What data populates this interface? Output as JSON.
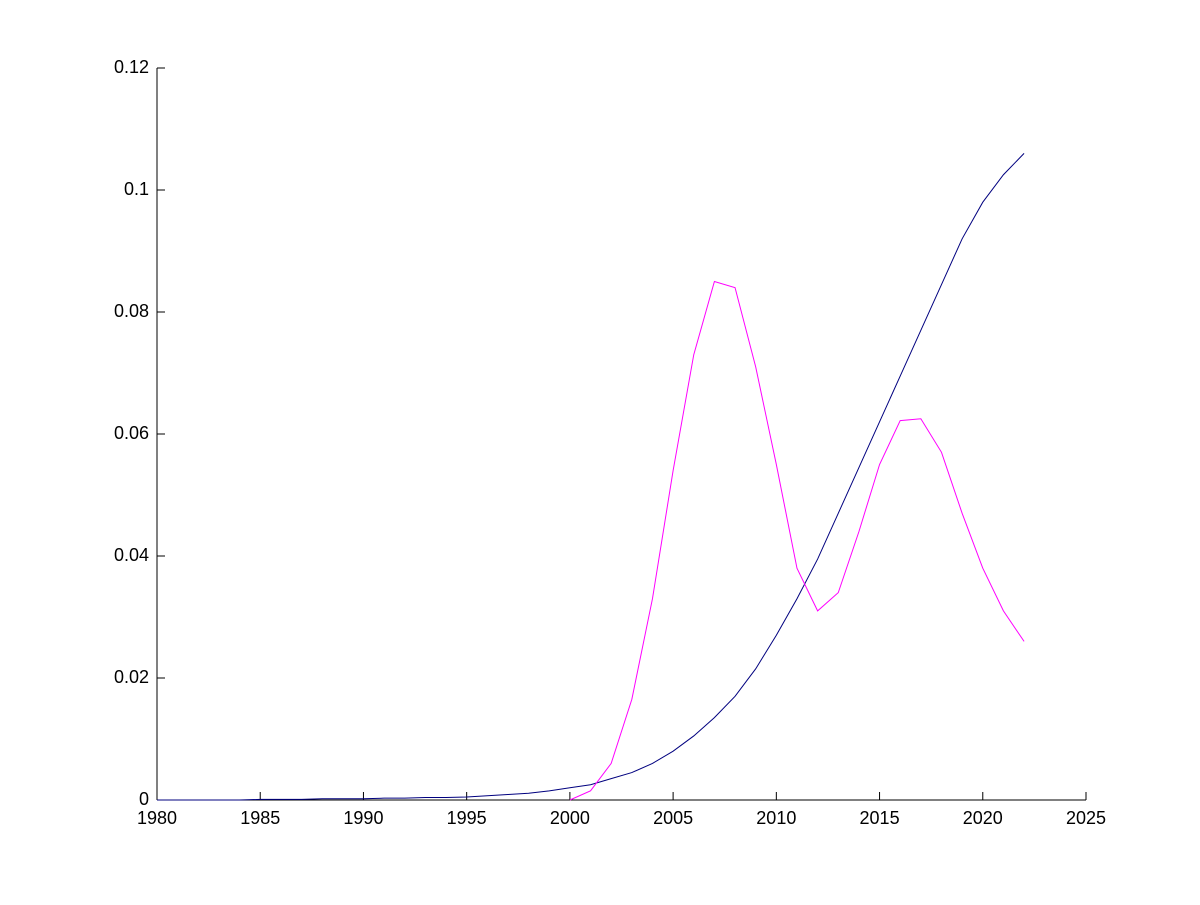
{
  "chart_data": {
    "type": "line",
    "x": [
      1980,
      1981,
      1982,
      1983,
      1984,
      1985,
      1986,
      1987,
      1988,
      1989,
      1990,
      1991,
      1992,
      1993,
      1994,
      1995,
      1996,
      1997,
      1998,
      1999,
      2000,
      2001,
      2002,
      2003,
      2004,
      2005,
      2006,
      2007,
      2008,
      2009,
      2010,
      2011,
      2012,
      2013,
      2014,
      2015,
      2016,
      2017,
      2018,
      2019,
      2020,
      2021,
      2022
    ],
    "series": [
      {
        "color": "#00007f",
        "values": [
          0,
          0,
          0,
          0,
          0,
          0.0001,
          0.0001,
          0.0001,
          0.0002,
          0.0002,
          0.0002,
          0.0003,
          0.0003,
          0.0004,
          0.0004,
          0.0005,
          0.0007,
          0.0009,
          0.0011,
          0.0015,
          0.002,
          0.0025,
          0.0035,
          0.0045,
          0.006,
          0.008,
          0.0105,
          0.0135,
          0.017,
          0.0215,
          0.027,
          0.033,
          0.0395,
          0.047,
          0.0545,
          0.062,
          0.0695,
          0.077,
          0.0845,
          0.092,
          0.098,
          0.1025,
          0.106
        ]
      },
      {
        "color": "#ff00ff",
        "values": [
          null,
          null,
          null,
          null,
          null,
          null,
          null,
          null,
          null,
          null,
          null,
          null,
          null,
          null,
          null,
          null,
          null,
          null,
          null,
          null,
          0,
          0.0015,
          0.006,
          0.0165,
          0.033,
          0.054,
          0.073,
          0.085,
          0.084,
          0.071,
          0.055,
          0.038,
          0.031,
          0.034,
          0.044,
          0.055,
          0.0622,
          0.0625,
          0.057,
          0.047,
          0.038,
          0.031,
          0.026
        ]
      }
    ],
    "xlim": [
      1980,
      2025
    ],
    "xticks": [
      1980,
      1985,
      1990,
      1995,
      2000,
      2005,
      2010,
      2015,
      2020,
      2025
    ],
    "ylim": [
      0,
      0.12
    ],
    "yticks": [
      0,
      0.02,
      0.04,
      0.06,
      0.08,
      0.1,
      0.12
    ],
    "grid": false
  }
}
